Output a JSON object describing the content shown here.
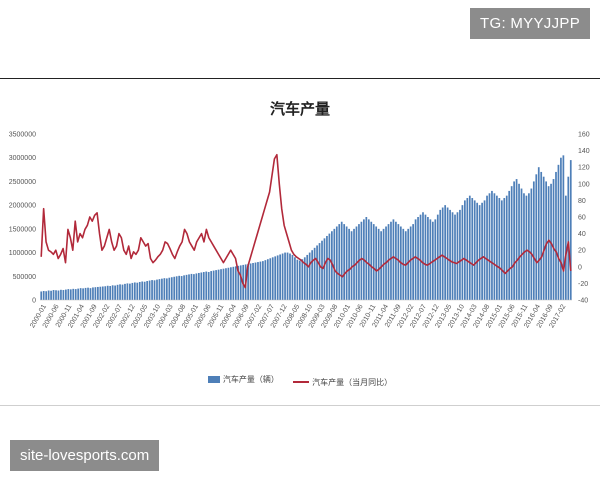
{
  "watermark_top": "TG: MYYJJPP",
  "watermark_bottom": "site-lovesports.com",
  "chart_data": {
    "type": "bar+line",
    "title": "汽车产量",
    "grid": false,
    "legend_position": "bottom",
    "y_left": {
      "ticks": [
        "0",
        "500000",
        "1000000",
        "1500000",
        "2000000",
        "2500000",
        "3000000",
        "3500000"
      ],
      "range": [
        0,
        3500000
      ]
    },
    "y_right": {
      "ticks": [
        "-40",
        "-20",
        "0",
        "20",
        "40",
        "60",
        "80",
        "100",
        "120",
        "140",
        "160"
      ],
      "range": [
        -40,
        160
      ]
    },
    "x_tick_labels": [
      "2000-01",
      "2000-06",
      "2000-11",
      "2001-04",
      "2001-09",
      "2002-02",
      "2002-07",
      "2002-12",
      "2003-05",
      "2003-10",
      "2004-03",
      "2004-08",
      "2005-01",
      "2005-06",
      "2005-11",
      "2006-04",
      "2006-09",
      "2007-02",
      "2007-07",
      "2007-12",
      "2008-05",
      "2008-10",
      "2009-03",
      "2009-08",
      "2010-01",
      "2010-06",
      "2010-11",
      "2011-04",
      "2011-09",
      "2012-02",
      "2012-07",
      "2012-12",
      "2013-05",
      "2013-10",
      "2014-03",
      "2014-08",
      "2015-01",
      "2015-06",
      "2015-11",
      "2016-04",
      "2016-09",
      "2017-02"
    ],
    "series": [
      {
        "name": "汽车产量（辆）",
        "type": "bar",
        "color": "#4e7fb8",
        "values": [
          180000,
          190000,
          185000,
          200000,
          195000,
          210000,
          205000,
          200000,
          215000,
          210000,
          220000,
          230000,
          225000,
          235000,
          230000,
          240000,
          250000,
          245000,
          255000,
          260000,
          250000,
          265000,
          270000,
          275000,
          280000,
          285000,
          290000,
          300000,
          295000,
          310000,
          305000,
          320000,
          330000,
          325000,
          340000,
          350000,
          345000,
          360000,
          370000,
          365000,
          380000,
          390000,
          385000,
          400000,
          410000,
          420000,
          415000,
          430000,
          440000,
          450000,
          460000,
          455000,
          470000,
          480000,
          490000,
          500000,
          510000,
          505000,
          520000,
          530000,
          540000,
          550000,
          545000,
          560000,
          570000,
          580000,
          590000,
          600000,
          590000,
          610000,
          620000,
          630000,
          640000,
          650000,
          660000,
          670000,
          680000,
          690000,
          700000,
          710000,
          720000,
          730000,
          740000,
          750000,
          760000,
          770000,
          780000,
          790000,
          800000,
          810000,
          820000,
          840000,
          860000,
          880000,
          900000,
          920000,
          940000,
          960000,
          980000,
          1000000,
          1000000,
          980000,
          950000,
          900000,
          850000,
          830000,
          860000,
          900000,
          950000,
          1000000,
          1050000,
          1100000,
          1150000,
          1200000,
          1250000,
          1300000,
          1350000,
          1400000,
          1450000,
          1500000,
          1550000,
          1600000,
          1650000,
          1600000,
          1550000,
          1500000,
          1450000,
          1500000,
          1550000,
          1600000,
          1650000,
          1700000,
          1750000,
          1700000,
          1650000,
          1600000,
          1550000,
          1500000,
          1450000,
          1500000,
          1550000,
          1600000,
          1650000,
          1700000,
          1650000,
          1600000,
          1550000,
          1500000,
          1450000,
          1500000,
          1550000,
          1600000,
          1700000,
          1750000,
          1800000,
          1850000,
          1800000,
          1750000,
          1700000,
          1650000,
          1700000,
          1800000,
          1900000,
          1950000,
          2000000,
          1950000,
          1900000,
          1850000,
          1800000,
          1850000,
          1900000,
          2000000,
          2100000,
          2150000,
          2200000,
          2150000,
          2100000,
          2050000,
          2000000,
          2050000,
          2100000,
          2200000,
          2250000,
          2300000,
          2250000,
          2200000,
          2150000,
          2100000,
          2150000,
          2200000,
          2300000,
          2400000,
          2500000,
          2550000,
          2450000,
          2350000,
          2250000,
          2200000,
          2250000,
          2350000,
          2500000,
          2650000,
          2800000,
          2700000,
          2600000,
          2500000,
          2400000,
          2450000,
          2550000,
          2700000,
          2850000,
          3000000,
          3050000,
          2200000,
          2600000,
          2950000
        ]
      },
      {
        "name": "汽车产量（当月同比）",
        "type": "line",
        "color": "#b2293a",
        "values": [
          12,
          70,
          30,
          20,
          18,
          15,
          20,
          10,
          15,
          22,
          5,
          45,
          35,
          20,
          55,
          30,
          40,
          35,
          45,
          50,
          60,
          55,
          62,
          65,
          40,
          20,
          25,
          35,
          45,
          30,
          20,
          25,
          40,
          35,
          20,
          15,
          25,
          10,
          18,
          15,
          20,
          35,
          30,
          25,
          28,
          10,
          5,
          8,
          12,
          15,
          20,
          30,
          28,
          22,
          15,
          10,
          18,
          25,
          30,
          45,
          40,
          30,
          25,
          20,
          30,
          35,
          40,
          30,
          45,
          35,
          30,
          25,
          20,
          15,
          10,
          5,
          10,
          15,
          20,
          15,
          10,
          -5,
          -10,
          -20,
          -25,
          0,
          10,
          20,
          30,
          40,
          50,
          60,
          70,
          80,
          90,
          110,
          130,
          135,
          100,
          70,
          50,
          40,
          30,
          20,
          15,
          12,
          10,
          8,
          5,
          3,
          0,
          5,
          8,
          10,
          5,
          0,
          -2,
          5,
          10,
          8,
          2,
          -5,
          -8,
          -10,
          -12,
          -8,
          -5,
          -3,
          0,
          2,
          5,
          8,
          10,
          8,
          5,
          3,
          0,
          -2,
          -5,
          -3,
          0,
          3,
          5,
          8,
          10,
          12,
          10,
          8,
          5,
          3,
          2,
          5,
          8,
          10,
          12,
          10,
          8,
          5,
          3,
          2,
          4,
          6,
          8,
          10,
          12,
          14,
          12,
          10,
          8,
          6,
          5,
          4,
          6,
          8,
          10,
          8,
          6,
          4,
          2,
          5,
          8,
          10,
          12,
          10,
          8,
          6,
          4,
          2,
          0,
          -2,
          -5,
          -8,
          -5,
          -2,
          0,
          5,
          8,
          12,
          15,
          18,
          20,
          18,
          15,
          10,
          5,
          8,
          12,
          20,
          28,
          32,
          28,
          22,
          18,
          10,
          5,
          -5,
          15,
          30,
          -5
        ]
      }
    ]
  }
}
